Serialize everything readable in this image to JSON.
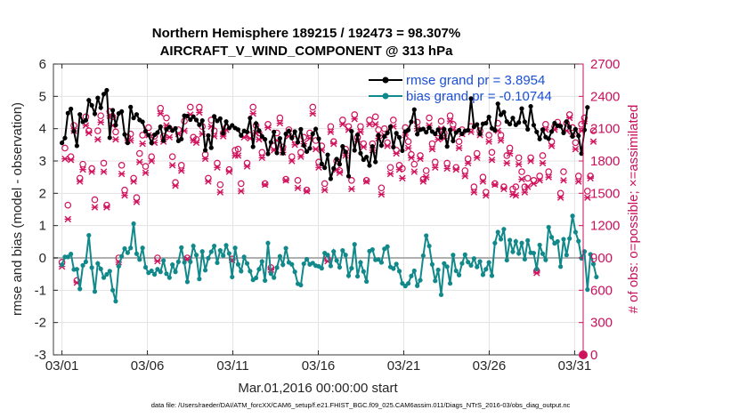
{
  "chart_data": {
    "type": "line",
    "title": "Northern Hemisphere 189215 / 192473 = 98.307%",
    "subtitle": "AIRCRAFT_V_WIND_COMPONENT @ 313 hPa",
    "xlabel": "Mar.01,2016 00:00:00 start",
    "ylabel_left": "rmse and bias (model - observation)",
    "ylabel_right": "# of obs: o=possible; ×=assimilated",
    "footnote": "data file: /Users/raeder/DAI/ATM_forcXX/CAM6_setup/f.e21.FHIST_BGC.f09_025.CAM6assim.011/Diags_NTrS_2016-03/obs_diag_output.nc",
    "xlim": [
      0.5,
      31.5
    ],
    "ylim_left": [
      -3,
      6
    ],
    "ylim_right": [
      0,
      2700
    ],
    "x_ticks": [
      1,
      6,
      11,
      16,
      21,
      26,
      31
    ],
    "x_tick_labels": [
      "03/01",
      "03/06",
      "03/11",
      "03/16",
      "03/21",
      "03/26",
      "03/31"
    ],
    "y_ticks_left": [
      -3,
      -2,
      -1,
      0,
      1,
      2,
      3,
      4,
      5,
      6
    ],
    "y_ticks_right": [
      0,
      300,
      600,
      900,
      1200,
      1500,
      1800,
      2100,
      2400,
      2700
    ],
    "grid": true,
    "legend": "top-right",
    "colors": {
      "rmse": "#000000",
      "bias": "#11898a",
      "obs": "#d0135d",
      "legend_text": "#1a4fd6",
      "zero_line": "#b0b0b0"
    },
    "series": [
      {
        "name": "rmse grand pr = 3.8954",
        "axis": "left",
        "values": [
          3.56,
          3.71,
          4.48,
          4.61,
          3.92,
          3.47,
          4.44,
          4.21,
          4.26,
          4.88,
          4.72,
          4.46,
          4.95,
          4.65,
          5.07,
          5.19,
          3.72,
          4.57,
          4.11,
          4.47,
          4.53,
          3.82,
          3.56,
          4.67,
          4.33,
          4.44,
          4.27,
          4.21,
          3.92,
          3.8,
          3.56,
          3.81,
          3.88,
          4.06,
          3.63,
          3.98,
          4.05,
          3.94,
          4.01,
          3.62,
          3.68,
          4.4,
          4.39,
          4.28,
          4.37,
          4.27,
          4.12,
          4.25,
          3.33,
          3.79,
          3.41,
          4.38,
          4.24,
          4.31,
          3.86,
          4.22,
          4.02,
          4.1,
          4.02,
          3.97,
          3.79,
          3.93,
          3.9,
          4.33,
          3.44,
          4.16,
          3.94,
          3.76,
          3.67,
          3.22,
          3.58,
          3.9,
          3.25,
          3.7,
          3.24,
          3.84,
          3.93,
          3.71,
          3.91,
          3.58,
          3.98,
          3.48,
          3.29,
          3.39,
          3.84,
          3.99,
          3.69,
          2.91,
          2.79,
          3.19,
          2.45,
          2.77,
          3.06,
          2.9,
          3.45,
          3.28,
          2.53,
          3.92,
          3.33,
          3.81,
          3.24,
          3.04,
          3.12,
          2.86,
          3.45,
          2.97,
          3.8,
          3.48,
          3.76,
          3.87,
          4.06,
          3.43,
          3.86,
          3.73,
          3.32,
          3.91,
          3.96,
          4.21,
          4.59,
          3.83,
          3.97,
          3.99,
          3.89,
          4.03,
          3.91,
          3.84,
          3.97,
          3.73,
          3.98,
          3.45,
          3.96,
          3.62,
          3.88,
          3.95,
          3.84,
          3.93,
          3.95,
          4.93,
          4.06,
          4.13,
          3.84,
          4.15,
          4.17,
          4.36,
          4.01,
          3.95,
          4.77,
          4.43,
          4.51,
          4.22,
          4.14,
          4.33,
          4.12,
          4.19,
          4.62,
          4.21,
          3.98,
          4.69,
          4.11,
          3.9,
          3.68,
          3.97,
          3.74,
          3.69,
          3.91,
          4.17,
          4.09,
          4.08,
          3.87,
          4.22,
          4.05,
          3.76,
          3.98,
          3.78,
          3.23,
          3.96,
          4.66
        ]
      },
      {
        "name": "bias grand pr = -0.10744",
        "axis": "left",
        "values": [
          -0.21,
          0.03,
          0.03,
          0.12,
          -0.36,
          -0.35,
          -0.96,
          -0.23,
          -0.12,
          0.7,
          -0.3,
          -1.04,
          -0.17,
          -0.34,
          -0.61,
          -0.51,
          -0.41,
          -1.0,
          -1.34,
          -0.26,
          0.05,
          0.29,
          0.16,
          0.31,
          1.06,
          0.13,
          -0.05,
          0.31,
          -0.29,
          -0.46,
          -0.4,
          -0.51,
          -0.35,
          -0.43,
          -0.08,
          -0.49,
          -0.61,
          -0.21,
          -0.43,
          -0.12,
          0.32,
          -0.14,
          -0.74,
          -0.12,
          0.37,
          0.09,
          -0.65,
          0.2,
          -0.38,
          -0.01,
          0.19,
          0.37,
          -0.15,
          0.23,
          0.07,
          0.39,
          0.14,
          -0.59,
          0.31,
          -0.2,
          -0.41,
          0.03,
          -0.17,
          -0.41,
          -0.68,
          -0.62,
          -0.35,
          -0.11,
          -0.7,
          0.46,
          -0.49,
          -0.61,
          -0.3,
          0.05,
          -0.21,
          0.3,
          -0.14,
          -0.2,
          -0.43,
          -0.8,
          -0.84,
          -0.18,
          -0.04,
          -0.2,
          -0.16,
          -0.24,
          -0.26,
          -0.32,
          0.15,
          0.09,
          -0.25,
          0.2,
          -0.08,
          -0.29,
          0.23,
          0.09,
          -0.55,
          -0.32,
          0.42,
          -0.57,
          -0.14,
          -0.42,
          -0.73,
          0.21,
          0.26,
          -0.06,
          -0.05,
          -0.14,
          0.28,
          0.35,
          -0.28,
          -0.33,
          -0.19,
          -0.41,
          -0.79,
          -0.87,
          -0.79,
          -0.56,
          -0.4,
          -0.86,
          -0.69,
          0.07,
          0.69,
          0.37,
          -0.2,
          -0.71,
          -0.37,
          -1.14,
          -0.17,
          -0.27,
          -0.79,
          0.09,
          -0.4,
          -0.53,
          -0.17,
          0.1,
          -0.13,
          -0.23,
          -0.02,
          -0.28,
          -0.11,
          -0.52,
          -0.35,
          -0.14,
          -0.55,
          0.46,
          0.8,
          0.58,
          0.89,
          -0.07,
          0.55,
          0.19,
          0.51,
          0.14,
          0.46,
          -0.04,
          0.54,
          0.16,
          0.15,
          -0.34,
          0.4,
          0.13,
          -0.06,
          0.95,
          0.64,
          0.45,
          0.51,
          -0.27,
          0.58,
          0.09,
          0.6,
          1.3,
          0.8,
          0.52,
          -0.01,
          0.2,
          -0.98,
          0.11,
          -0.19,
          -0.59
        ]
      },
      {
        "name": "obs possible (o)",
        "axis": "right",
        "values": [
          860,
          1920,
          1390,
          1840,
          2130,
          690,
          1640,
          1770,
          2210,
          2080,
          1730,
          1440,
          2080,
          2220,
          1780,
          1390,
          2260,
          2210,
          2070,
          900,
          1760,
          1530,
          2020,
          2050,
          1640,
          1460,
          1870,
          2040,
          1750,
          2110,
          1840,
          2030,
          900,
          2290,
          2030,
          2200,
          2100,
          1840,
          1600,
          2090,
          1760,
          2170,
          900,
          2300,
          2020,
          2000,
          2300,
          2120,
          1860,
          1640,
          2180,
          2080,
          1780,
          1580,
          2060,
          2110,
          1720,
          890,
          1900,
          1910,
          1590,
          2040,
          1780,
          2040,
          2300,
          2130,
          2060,
          1880,
          1590,
          2140,
          810,
          1940,
          2060,
          2200,
          1930,
          1630,
          2090,
          1840,
          2000,
          1620,
          1880,
          2020,
          1530,
          2060,
          2300,
          1990,
          1790,
          1940,
          1590,
          890,
          2120,
          1980,
          1800,
          1710,
          2180,
          1910,
          2120,
          1620,
          2230,
          2020,
          2120,
          1960,
          1620,
          2180,
          1960,
          2210,
          2090,
          1550,
          2100,
          1970,
          1740,
          2180,
          1900,
          1760,
          1730,
          2110,
          1980,
          1860,
          1770,
          2160,
          1850,
          1630,
          1710,
          2200,
          1960,
          1790,
          2060,
          2170,
          2060,
          1780,
          2220,
          2140,
          1740,
          1980,
          2090,
          1710,
          1820,
          2120,
          1560,
          1870,
          2080,
          1650,
          1510,
          2040,
          1880,
          1590,
          2150,
          2040,
          1560,
          1850,
          1920,
          1540,
          1560,
          1830,
          1700,
          1560,
          1640,
          1830,
          1620,
          780,
          1660,
          1850,
          2140,
          1700,
          1980,
          2120,
          2160,
          1500,
          1700,
          2150,
          2230,
          2110,
          1970,
          1660,
          2140,
          2200,
          1520,
          1660,
          2080
        ]
      },
      {
        "name": "obs assimilated (×)",
        "axis": "right",
        "values": [
          820,
          1820,
          1260,
          1810,
          2080,
          670,
          1610,
          1720,
          2130,
          2060,
          1700,
          1370,
          2000,
          2160,
          1700,
          1370,
          2220,
          2130,
          2000,
          860,
          1680,
          1480,
          1990,
          1990,
          1610,
          1420,
          1790,
          1960,
          1690,
          2040,
          1800,
          1970,
          870,
          2240,
          1980,
          2130,
          2020,
          1760,
          1570,
          2050,
          1710,
          2080,
          890,
          2230,
          1990,
          1970,
          2250,
          2050,
          1820,
          1610,
          2120,
          2030,
          1740,
          1510,
          2030,
          2090,
          1700,
          880,
          1850,
          1850,
          1520,
          2020,
          1750,
          2010,
          2240,
          2060,
          2000,
          1830,
          1580,
          2110,
          790,
          1900,
          1990,
          2150,
          1880,
          1620,
          2030,
          1800,
          1950,
          1550,
          1840,
          1960,
          1520,
          2010,
          2240,
          1910,
          1740,
          1900,
          1530,
          870,
          2070,
          1960,
          1720,
          1690,
          2140,
          1850,
          2090,
          1540,
          2190,
          1980,
          2070,
          1930,
          1610,
          2140,
          1900,
          2140,
          2010,
          1490,
          2040,
          1940,
          1680,
          2120,
          1870,
          1720,
          1640,
          2040,
          1920,
          1830,
          1700,
          2100,
          1820,
          1610,
          1650,
          2130,
          1910,
          1740,
          2000,
          2100,
          2010,
          1730,
          2170,
          2090,
          1720,
          1920,
          2050,
          1660,
          1780,
          2070,
          1510,
          1830,
          2040,
          1610,
          1480,
          1980,
          1810,
          1580,
          2080,
          1990,
          1540,
          1780,
          1870,
          1490,
          1480,
          1770,
          1630,
          1510,
          1560,
          1800,
          1590,
          760,
          1620,
          1780,
          2090,
          1650,
          1940,
          2090,
          2130,
          1460,
          1620,
          2080,
          2200,
          2050,
          1910,
          1610,
          2080,
          2170,
          1460,
          1640,
          1980
        ]
      }
    ]
  }
}
